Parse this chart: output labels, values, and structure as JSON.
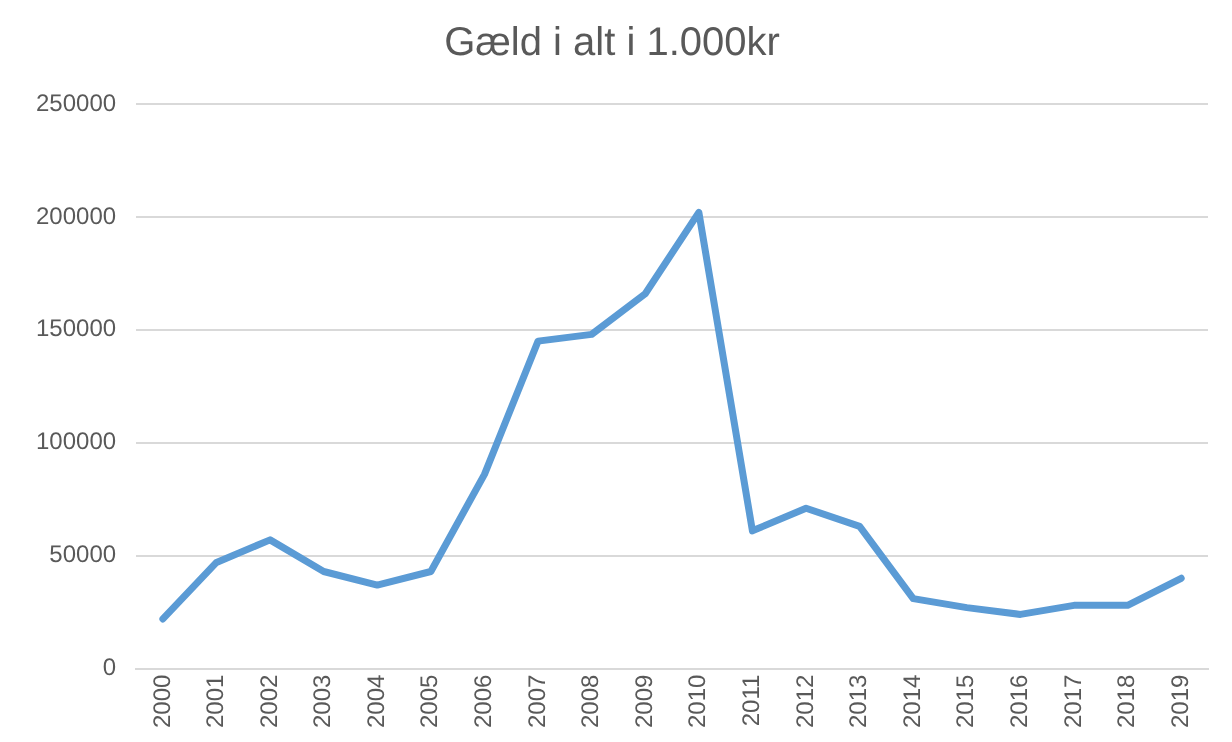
{
  "chart_data": {
    "type": "line",
    "title": "Gæld i alt i 1.000kr",
    "categories": [
      "2000",
      "2001",
      "2002",
      "2003",
      "2004",
      "2005",
      "2006",
      "2007",
      "2008",
      "2009",
      "2010",
      "2011",
      "2012",
      "2013",
      "2014",
      "2015",
      "2016",
      "2017",
      "2018",
      "2019"
    ],
    "series": [
      {
        "color": "#5b9bd5",
        "values": [
          22000,
          47000,
          57000,
          43000,
          37000,
          43000,
          86000,
          145000,
          148000,
          166000,
          202000,
          61000,
          71000,
          63000,
          31000,
          27000,
          24000,
          28000,
          28000,
          40000
        ]
      }
    ],
    "ylim": [
      0,
      250000
    ],
    "yticks": [
      0,
      50000,
      100000,
      150000,
      200000,
      250000
    ],
    "grid": "y",
    "legend": false,
    "marker": "none",
    "line_style": "solid"
  }
}
